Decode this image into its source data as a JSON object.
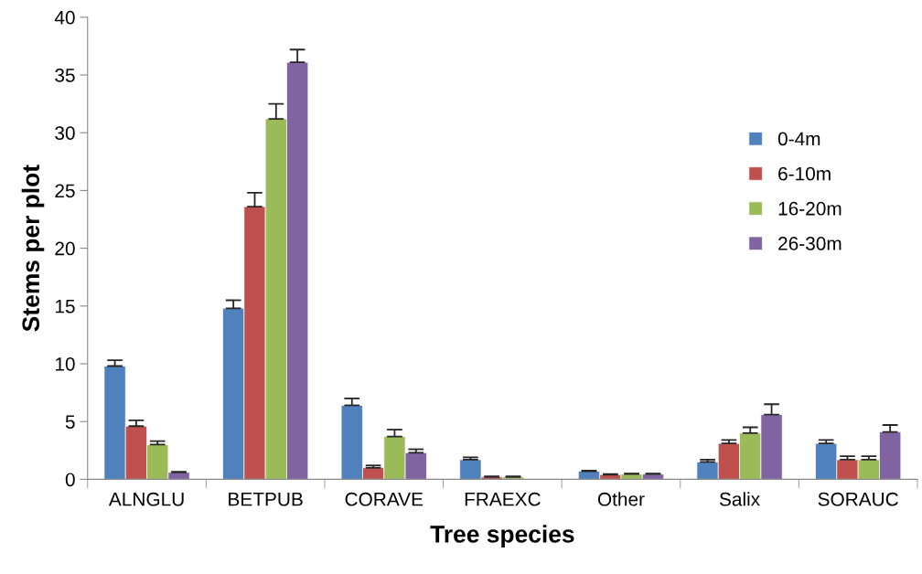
{
  "chart_data": {
    "type": "bar",
    "xlabel": "Tree species",
    "ylabel": "Stems per plot",
    "categories": [
      "ALNGLU",
      "BETPUB",
      "CORAVE",
      "FRAEXC",
      "Other",
      "Salix",
      "SORAUC"
    ],
    "series": [
      {
        "name": "0-4m",
        "color": "#4f81bd",
        "values": [
          9.8,
          14.8,
          6.4,
          1.7,
          0.7,
          1.5,
          3.1
        ],
        "errors": [
          [
            9.8,
            10.3
          ],
          [
            14.8,
            15.5
          ],
          [
            6.4,
            7.0
          ],
          [
            1.7,
            1.9
          ],
          [
            0.7,
            0.75
          ],
          [
            1.5,
            1.7
          ],
          [
            3.1,
            3.4
          ]
        ]
      },
      {
        "name": "6-10m",
        "color": "#c0504d",
        "values": [
          4.6,
          23.6,
          1.0,
          0.2,
          0.4,
          3.1,
          1.7
        ],
        "errors": [
          [
            4.6,
            5.1
          ],
          [
            23.6,
            24.8
          ],
          [
            1.0,
            1.2
          ],
          [
            0.2,
            0.25
          ],
          [
            0.4,
            0.45
          ],
          [
            3.1,
            3.4
          ],
          [
            1.7,
            2.0
          ]
        ]
      },
      {
        "name": "16-20m",
        "color": "#9bbb59",
        "values": [
          3.0,
          31.2,
          3.7,
          0.2,
          0.45,
          4.0,
          1.7
        ],
        "errors": [
          [
            3.0,
            3.3
          ],
          [
            31.2,
            32.5
          ],
          [
            3.7,
            4.3
          ],
          [
            0.2,
            0.25
          ],
          [
            0.45,
            0.5
          ],
          [
            4.0,
            4.5
          ],
          [
            1.7,
            2.0
          ]
        ]
      },
      {
        "name": "26-30m",
        "color": "#8064a2",
        "values": [
          0.6,
          36.1,
          2.3,
          null,
          0.45,
          5.6,
          4.1
        ],
        "errors": [
          [
            0.6,
            0.65
          ],
          [
            36.1,
            37.2
          ],
          [
            2.3,
            2.6
          ],
          null,
          [
            0.45,
            0.5
          ],
          [
            5.6,
            6.5
          ],
          [
            4.1,
            4.7
          ]
        ]
      }
    ],
    "ylim": [
      0,
      40
    ],
    "yticks": [
      0,
      5,
      10,
      15,
      20,
      25,
      30,
      35,
      40
    ],
    "grid": false,
    "legend": "right"
  }
}
